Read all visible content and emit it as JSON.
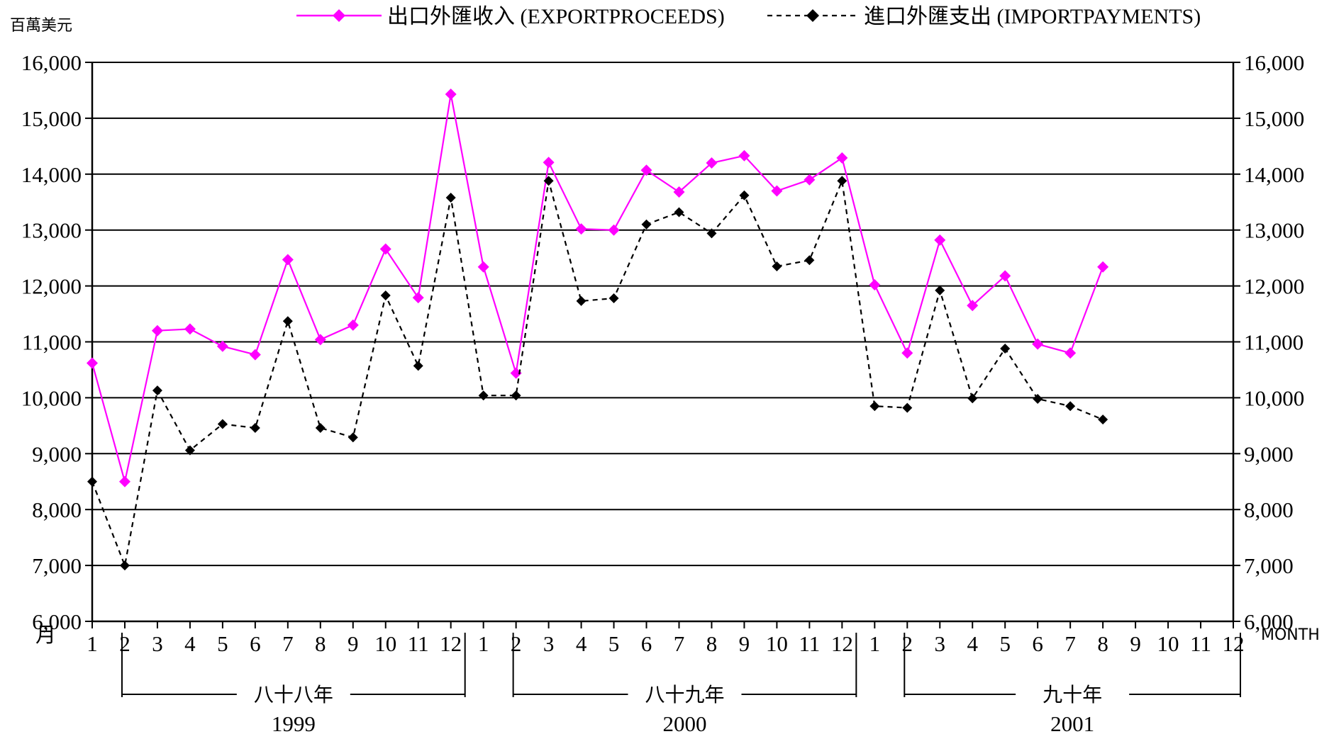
{
  "chart_data": {
    "type": "line",
    "units": {
      "left": "百萬美元",
      "x_left": "月",
      "x_right": "MONTH"
    },
    "legend": [
      {
        "label": "出口外匯收入 (EXPORTPROCEEDS)",
        "color": "#ff00ff",
        "style": "solid",
        "marker": "diamond"
      },
      {
        "label": "進口外匯支出 (IMPORTPAYMENTS)",
        "color": "#000000",
        "style": "dashed",
        "marker": "diamond"
      }
    ],
    "ylim": [
      6000,
      16000
    ],
    "y_ticks": [
      "6,000",
      "7,000",
      "8,000",
      "9,000",
      "10,000",
      "11,000",
      "12,000",
      "13,000",
      "14,000",
      "15,000",
      "16,000"
    ],
    "month_labels": [
      "1",
      "2",
      "3",
      "4",
      "5",
      "6",
      "7",
      "8",
      "9",
      "10",
      "11",
      "12",
      "1",
      "2",
      "3",
      "4",
      "5",
      "6",
      "7",
      "8",
      "9",
      "10",
      "11",
      "12",
      "1",
      "2",
      "3",
      "4",
      "5",
      "6",
      "7",
      "8",
      "9",
      "10",
      "11",
      "12"
    ],
    "year_groups": [
      {
        "era": "八十八年",
        "year": "1999"
      },
      {
        "era": "八十九年",
        "year": "2000"
      },
      {
        "era": "九十年",
        "year": "2001"
      }
    ],
    "series": [
      {
        "name": "出口外匯收入 (EXPORTPROCEEDS)",
        "values": [
          10620,
          8500,
          11200,
          11230,
          10920,
          10770,
          12470,
          11040,
          11300,
          12660,
          11790,
          15430,
          12340,
          10440,
          14210,
          13020,
          13000,
          14070,
          13680,
          14200,
          14330,
          13700,
          13900,
          14290,
          12020,
          10800,
          12820,
          11650,
          12180,
          10960,
          10800,
          12340
        ]
      },
      {
        "name": "進口外匯支出 (IMPORTPAYMENTS)",
        "values": [
          8500,
          7000,
          10130,
          9060,
          9530,
          9460,
          11370,
          9460,
          9290,
          11830,
          10570,
          13580,
          10040,
          10040,
          13880,
          11730,
          11780,
          13100,
          13320,
          12940,
          13620,
          12350,
          12460,
          13880,
          9850,
          9820,
          11920,
          9990,
          10880,
          9980,
          9850,
          9610
        ]
      }
    ]
  }
}
